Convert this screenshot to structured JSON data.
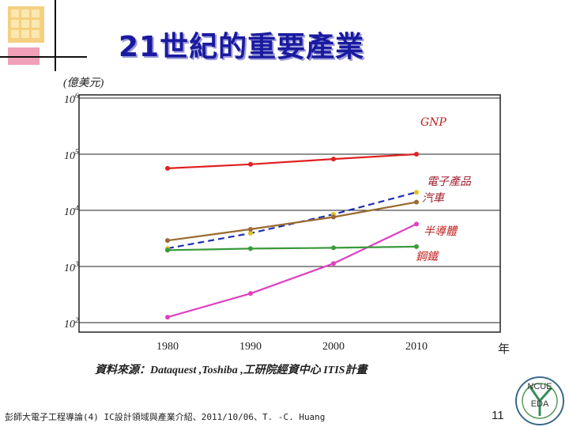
{
  "slide": {
    "title": "21世紀的重要產業",
    "unit_label": "(億美元)",
    "source": "資料來源：Dataquest ,Toshiba ,工研院經資中心 ITIS計畫",
    "footer": "彭師大電子工程導論(4) IC設計領域與產業介紹、2011/10/06、T. -C. Huang",
    "page_number": "11",
    "logo_text_top": "NCUE",
    "logo_text_bottom": "EDA"
  },
  "chart_data": {
    "type": "line",
    "y_scale": "log",
    "ylim": [
      100,
      1000000
    ],
    "y_ticks": [
      {
        "value": 1000000,
        "base": "10",
        "exp": "6"
      },
      {
        "value": 100000,
        "base": "10",
        "exp": "5"
      },
      {
        "value": 10000,
        "base": "10",
        "exp": "4"
      },
      {
        "value": 1000,
        "base": "10",
        "exp": "3"
      },
      {
        "value": 100,
        "base": "10",
        "exp": "2"
      }
    ],
    "x_ticks": [
      "1980",
      "1990",
      "2000",
      "2010"
    ],
    "x_unit": "年",
    "series": [
      {
        "name": "GNP",
        "color": "#e02020",
        "style": "solid",
        "x": [
          1980,
          1990,
          2000,
          2010
        ],
        "y": [
          56000,
          66000,
          82000,
          100000
        ]
      },
      {
        "name": "電子產品",
        "color": "#2030b0",
        "style": "dashed",
        "x": [
          1980,
          1990,
          2000,
          2010
        ],
        "y": [
          2100,
          3900,
          8500,
          21000
        ]
      },
      {
        "name": "汽車",
        "color": "#9a6a30",
        "style": "solid",
        "x": [
          1980,
          1990,
          2000,
          2010
        ],
        "y": [
          2900,
          4600,
          7600,
          14000
        ]
      },
      {
        "name": "半導體",
        "color": "#e040c0",
        "style": "solid",
        "x": [
          1980,
          1990,
          2000,
          2010
        ],
        "y": [
          125,
          330,
          1130,
          5700
        ]
      },
      {
        "name": "鋼鐵",
        "color": "#3a9a3a",
        "style": "solid",
        "x": [
          1980,
          1990,
          2000,
          2010
        ],
        "y": [
          1950,
          2080,
          2150,
          2260
        ]
      }
    ]
  }
}
